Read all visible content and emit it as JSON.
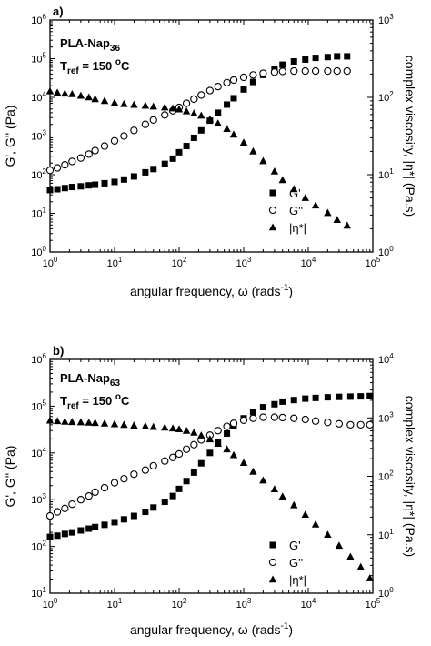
{
  "chart_data": [
    {
      "type": "scatter",
      "panel_label": "a)",
      "sample_main": "PLA-Nap",
      "sample_sub": "36",
      "tref_main": "T",
      "tref_sub": "ref",
      "tref_value": " = 150 ",
      "tref_unit_sup": "o",
      "tref_unit": "C",
      "xlabel": "angular frequency, ω (rads",
      "xlabel_sup": "-1",
      "xlabel_end": ")",
      "ylabel": "G', G'' (Pa)",
      "y2label": "complex viscosity, |η*| (Pa.s)",
      "xscale": "log",
      "yscale": "log",
      "xlim": [
        1,
        100000
      ],
      "ylim": [
        1,
        1000000
      ],
      "y2lim": [
        1,
        1000
      ],
      "x_ticks": [
        "10^0",
        "10^1",
        "10^2",
        "10^3",
        "10^4",
        "10^5"
      ],
      "y_ticks": [
        "10^0",
        "10^1",
        "10^2",
        "10^3",
        "10^4",
        "10^5",
        "10^6"
      ],
      "y2_ticks": [
        "10^0",
        "10^1",
        "10^2",
        "10^3"
      ],
      "legend": {
        "placement": "right-middle",
        "entries": [
          "G'",
          "G''",
          "|η*|"
        ]
      },
      "series": [
        {
          "name": "G'",
          "marker": "filled-square",
          "axis": "left",
          "x": [
            1.0,
            1.3,
            1.7,
            2.2,
            3.0,
            4.0,
            5.0,
            7.0,
            10,
            14,
            20,
            30,
            40,
            60,
            80,
            100,
            130,
            170,
            220,
            300,
            400,
            550,
            700,
            1000,
            1400,
            2000,
            3000,
            4000,
            6000,
            9000,
            13000,
            20000,
            28000,
            40000
          ],
          "y": [
            40,
            42,
            45,
            48,
            50,
            53,
            55,
            60,
            65,
            75,
            90,
            115,
            140,
            190,
            260,
            380,
            550,
            900,
            1400,
            2500,
            4000,
            6500,
            9500,
            16000,
            25000,
            38000,
            55000,
            70000,
            85000,
            95000,
            105000,
            110000,
            115000,
            115000
          ]
        },
        {
          "name": "G''",
          "marker": "open-circle",
          "axis": "left",
          "x": [
            1.0,
            1.3,
            1.7,
            2.2,
            3.0,
            4.0,
            5.0,
            7.0,
            10,
            14,
            20,
            30,
            40,
            60,
            80,
            100,
            130,
            170,
            220,
            300,
            400,
            550,
            700,
            1000,
            1400,
            2000,
            3000,
            4000,
            6000,
            9000,
            13000,
            20000,
            28000,
            40000
          ],
          "y": [
            130,
            150,
            180,
            220,
            270,
            340,
            420,
            550,
            750,
            1000,
            1400,
            2000,
            2600,
            3500,
            4500,
            5500,
            7000,
            9000,
            11500,
            15000,
            19000,
            24000,
            28000,
            33000,
            38000,
            42000,
            45000,
            47000,
            48000,
            48000,
            48000,
            48000,
            48000,
            48000
          ]
        },
        {
          "name": "|η*|",
          "marker": "filled-triangle",
          "axis": "right",
          "x": [
            1.0,
            1.3,
            1.7,
            2.2,
            3.0,
            4.0,
            5.0,
            7.0,
            10,
            14,
            20,
            30,
            40,
            60,
            80,
            100,
            130,
            170,
            220,
            300,
            400,
            550,
            700,
            1000,
            1400,
            2000,
            3000,
            4000,
            6000,
            9000,
            13000,
            20000,
            28000,
            40000
          ],
          "y": [
            120,
            115,
            112,
            110,
            105,
            100,
            95,
            90,
            85,
            82,
            80,
            78,
            76,
            74,
            72,
            70,
            66,
            62,
            58,
            52,
            46,
            39,
            33,
            26,
            20,
            15,
            11,
            8.5,
            6.5,
            5.0,
            4.0,
            3.2,
            2.6,
            2.2
          ]
        }
      ]
    },
    {
      "type": "scatter",
      "panel_label": "b)",
      "sample_main": "PLA-Nap",
      "sample_sub": "63",
      "tref_main": "T",
      "tref_sub": "ref",
      "tref_value": " = 150 ",
      "tref_unit_sup": "o",
      "tref_unit": "C",
      "xlabel": "angular frequency, ω (rads",
      "xlabel_sup": "-1",
      "xlabel_end": ")",
      "ylabel": "G', G'' (Pa)",
      "y2label": "complex viscosity, |η*| (Pa.s)",
      "xscale": "log",
      "yscale": "log",
      "xlim": [
        1,
        100000
      ],
      "ylim": [
        10,
        1000000
      ],
      "y2lim": [
        1,
        10000
      ],
      "x_ticks": [
        "10^0",
        "10^1",
        "10^2",
        "10^3",
        "10^4",
        "10^5"
      ],
      "y_ticks": [
        "10^1",
        "10^2",
        "10^3",
        "10^4",
        "10^5",
        "10^6"
      ],
      "y2_ticks": [
        "10^0",
        "10^1",
        "10^2",
        "10^3",
        "10^4"
      ],
      "legend": {
        "placement": "bottom-right",
        "entries": [
          "G'",
          "G''",
          "|η*|"
        ]
      },
      "series": [
        {
          "name": "G'",
          "marker": "filled-square",
          "axis": "left",
          "x": [
            1.0,
            1.3,
            1.7,
            2.2,
            3.0,
            4.0,
            5.0,
            7.0,
            10,
            14,
            20,
            30,
            40,
            60,
            80,
            100,
            130,
            170,
            220,
            300,
            400,
            550,
            700,
            1000,
            1400,
            2000,
            3000,
            4000,
            6000,
            9000,
            13000,
            20000,
            30000,
            45000,
            65000,
            90000
          ],
          "y": [
            160,
            170,
            185,
            200,
            220,
            240,
            260,
            290,
            330,
            380,
            450,
            550,
            680,
            900,
            1200,
            1700,
            2500,
            3800,
            6000,
            10000,
            17000,
            26000,
            38000,
            55000,
            75000,
            95000,
            110000,
            125000,
            135000,
            145000,
            150000,
            155000,
            158000,
            160000,
            162000,
            165000
          ]
        },
        {
          "name": "G''",
          "marker": "open-circle",
          "axis": "left",
          "x": [
            1.0,
            1.3,
            1.7,
            2.2,
            3.0,
            4.0,
            5.0,
            7.0,
            10,
            14,
            20,
            30,
            40,
            60,
            80,
            100,
            130,
            170,
            220,
            300,
            400,
            550,
            700,
            1000,
            1400,
            2000,
            3000,
            4000,
            6000,
            9000,
            13000,
            20000,
            30000,
            45000,
            65000,
            90000
          ],
          "y": [
            450,
            550,
            650,
            800,
            1000,
            1200,
            1450,
            1800,
            2300,
            2800,
            3500,
            4300,
            5300,
            6700,
            8000,
            9500,
            12000,
            15000,
            19000,
            24000,
            30000,
            37000,
            43000,
            50000,
            55000,
            58000,
            58000,
            57000,
            55000,
            52000,
            48000,
            45000,
            42000,
            40000,
            40000,
            40000
          ]
        },
        {
          "name": "|η*|",
          "marker": "filled-triangle",
          "axis": "right",
          "x": [
            1.0,
            1.3,
            1.7,
            2.2,
            3.0,
            4.0,
            5.0,
            7.0,
            10,
            14,
            20,
            30,
            40,
            60,
            80,
            100,
            130,
            170,
            220,
            300,
            400,
            550,
            700,
            1000,
            1400,
            2000,
            3000,
            4000,
            6000,
            9000,
            13000,
            20000,
            30000,
            45000,
            65000,
            90000
          ],
          "y": [
            900,
            880,
            860,
            850,
            840,
            830,
            820,
            800,
            780,
            760,
            740,
            720,
            700,
            680,
            660,
            640,
            600,
            560,
            500,
            430,
            360,
            290,
            230,
            170,
            120,
            85,
            60,
            45,
            32,
            22,
            15,
            10,
            6.5,
            4.2,
            2.8,
            1.8
          ]
        }
      ]
    }
  ]
}
